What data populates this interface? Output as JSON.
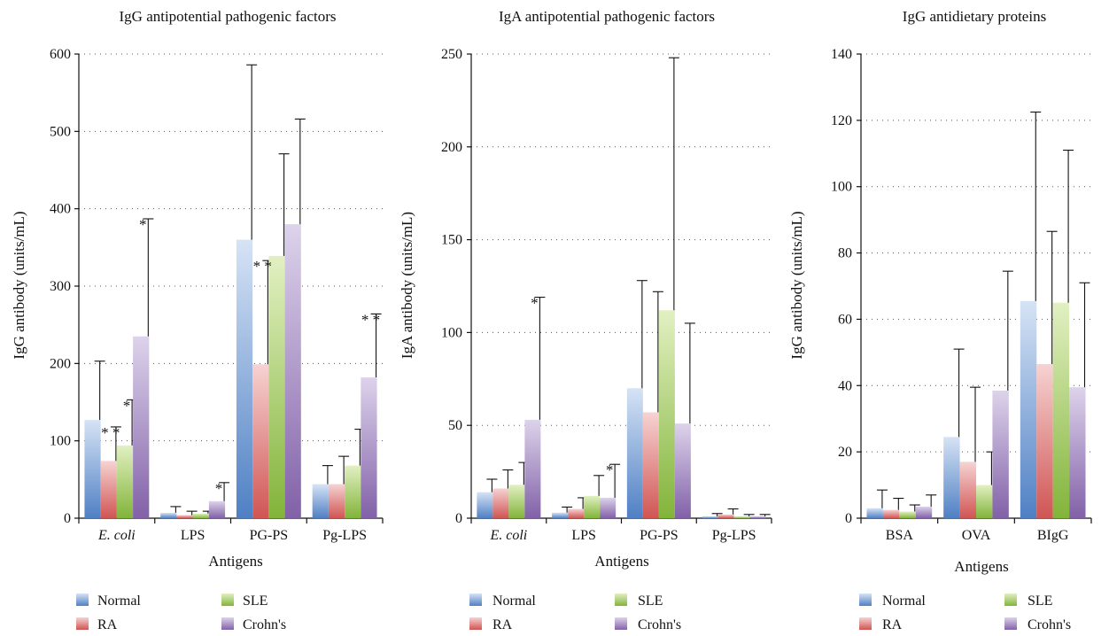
{
  "colors": {
    "Normal": [
      "#d6e3f5",
      "#4f80c4"
    ],
    "RA": [
      "#f6d3d2",
      "#d05554"
    ],
    "SLE": [
      "#e2f0c2",
      "#82b43a"
    ],
    "Crohn's": [
      "#ddd3eb",
      "#8261a8"
    ]
  },
  "chart_data": [
    {
      "type": "bar",
      "title": "IgG antipotential pathogenic factors",
      "xlabel": "Antigens",
      "ylabel": "IgG antibody (units/mL)",
      "ylim": [
        0,
        600
      ],
      "yticks": [
        0,
        100,
        200,
        300,
        400,
        500,
        600
      ],
      "grid": true,
      "legend": "bottom",
      "categories": [
        "E. coli",
        "LPS",
        "PG-PS",
        "Pg-LPS"
      ],
      "italic_categories": [
        "E. coli"
      ],
      "series": [
        {
          "name": "Normal",
          "values": [
            127,
            7,
            360,
            44
          ],
          "errors": [
            76,
            8,
            226,
            24
          ]
        },
        {
          "name": "RA",
          "values": [
            74,
            4,
            199,
            44
          ],
          "errors": [
            44,
            5,
            134,
            36
          ]
        },
        {
          "name": "SLE",
          "values": [
            94,
            6,
            339,
            68
          ],
          "errors": [
            59,
            3,
            132,
            47
          ]
        },
        {
          "name": "Crohn's",
          "values": [
            235,
            22,
            380,
            182
          ],
          "errors": [
            152,
            24,
            136,
            82
          ]
        }
      ],
      "annotations": [
        {
          "category": 0,
          "series": 1,
          "text": "* *"
        },
        {
          "category": 0,
          "series": 2,
          "text": "*"
        },
        {
          "category": 0,
          "series": 3,
          "text": "*"
        },
        {
          "category": 1,
          "series": 3,
          "text": "*"
        },
        {
          "category": 2,
          "series": 1,
          "text": "* *"
        },
        {
          "category": 3,
          "series": 3,
          "text": "* *"
        }
      ]
    },
    {
      "type": "bar",
      "title": "IgA antipotential pathogenic factors",
      "xlabel": "Antigens",
      "ylabel": "IgA antibody (units/mL)",
      "ylim": [
        0,
        250
      ],
      "yticks": [
        0,
        50,
        100,
        150,
        200,
        250
      ],
      "grid": true,
      "legend": "bottom",
      "categories": [
        "E. coli",
        "LPS",
        "PG-PS",
        "Pg-LPS"
      ],
      "italic_categories": [
        "E. coli"
      ],
      "series": [
        {
          "name": "Normal",
          "values": [
            14,
            3,
            70,
            1
          ],
          "errors": [
            7,
            3,
            58,
            1.5
          ]
        },
        {
          "name": "RA",
          "values": [
            16,
            5,
            57,
            2
          ],
          "errors": [
            10,
            6,
            65,
            3
          ]
        },
        {
          "name": "SLE",
          "values": [
            18,
            12,
            112,
            1
          ],
          "errors": [
            12,
            11,
            136,
            1
          ]
        },
        {
          "name": "Crohn's",
          "values": [
            53,
            11,
            51,
            1
          ],
          "errors": [
            66,
            18,
            54,
            1
          ]
        }
      ],
      "annotations": [
        {
          "category": 0,
          "series": 3,
          "text": "*"
        },
        {
          "category": 1,
          "series": 3,
          "text": "*"
        }
      ]
    },
    {
      "type": "bar",
      "title": "IgG antidietary proteins",
      "xlabel": "Antigens",
      "ylabel": "IgG antibody (units/mL)",
      "ylim": [
        0,
        140
      ],
      "yticks": [
        0,
        20,
        40,
        60,
        80,
        100,
        120,
        140
      ],
      "grid": true,
      "legend": "bottom",
      "categories": [
        "BSA",
        "OVA",
        "BIgG"
      ],
      "italic_categories": [],
      "series": [
        {
          "name": "Normal",
          "values": [
            3,
            24.5,
            65.5
          ],
          "errors": [
            5.5,
            26.5,
            57
          ]
        },
        {
          "name": "RA",
          "values": [
            2.5,
            17,
            46.5
          ],
          "errors": [
            3.5,
            22.5,
            40
          ]
        },
        {
          "name": "SLE",
          "values": [
            2,
            10,
            65
          ],
          "errors": [
            2,
            10,
            46
          ]
        },
        {
          "name": "Crohn's",
          "values": [
            3.5,
            38.5,
            39.5
          ],
          "errors": [
            3.5,
            36,
            31.5
          ]
        }
      ],
      "annotations": []
    }
  ]
}
